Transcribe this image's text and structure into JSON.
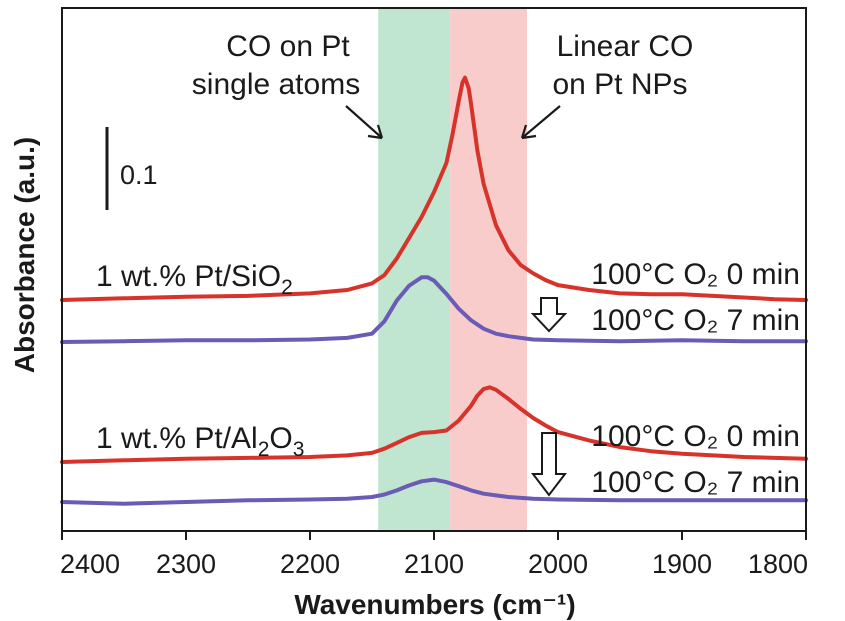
{
  "chart_data": {
    "type": "line",
    "xlabel": "Wavenumbers (cm⁻¹)",
    "ylabel": "Absorbance (a.u.)",
    "xlim": [
      2400,
      1800
    ],
    "x_reversed": true,
    "x_ticks": [
      "2400",
      "2300",
      "2200",
      "2100",
      "2000",
      "1900",
      "1800"
    ],
    "grid": false,
    "scale_bar": {
      "label": "0.1",
      "value": 0.1
    },
    "bands": [
      {
        "label_lines": [
          "CO on Pt",
          "single atoms"
        ],
        "range": [
          2145,
          2087
        ],
        "color": "#b9e2cc"
      },
      {
        "label_lines": [
          "Linear CO",
          "on Pt NPs"
        ],
        "range": [
          2087,
          2025
        ],
        "color": "#f8c6c6"
      }
    ],
    "samples": [
      {
        "label_prefix": "1 wt.% Pt/SiO",
        "label_sub": "2",
        "label_suffix": "",
        "series": [
          {
            "name": "100°C O₂ 0 min",
            "color": "#d6332a",
            "x": [
              2400,
              2350,
              2300,
              2250,
              2200,
              2170,
              2150,
              2140,
              2130,
              2120,
              2110,
              2100,
              2090,
              2085,
              2080,
              2077,
              2075,
              2072,
              2070,
              2065,
              2060,
              2050,
              2040,
              2030,
              2020,
              2010,
              2000,
              1975,
              1950,
              1925,
              1900,
              1875,
              1850,
              1825,
              1800
            ],
            "y": [
              0.0,
              0.002,
              0.004,
              0.005,
              0.008,
              0.012,
              0.02,
              0.03,
              0.05,
              0.075,
              0.1,
              0.13,
              0.165,
              0.2,
              0.24,
              0.262,
              0.268,
              0.255,
              0.235,
              0.18,
              0.14,
              0.09,
              0.06,
              0.042,
              0.032,
              0.024,
              0.018,
              0.012,
              0.008,
              0.007,
              0.007,
              0.005,
              0.003,
              0.001,
              0.0
            ]
          },
          {
            "name": "100°C O₂ 7 min",
            "color": "#6a5bb5",
            "x": [
              2400,
              2350,
              2300,
              2250,
              2200,
              2170,
              2150,
              2140,
              2130,
              2120,
              2110,
              2105,
              2100,
              2090,
              2080,
              2070,
              2060,
              2050,
              2040,
              2030,
              2020,
              2000,
              1950,
              1900,
              1850,
              1800
            ],
            "y": [
              0.0,
              0.001,
              0.002,
              0.002,
              0.003,
              0.005,
              0.01,
              0.025,
              0.05,
              0.068,
              0.078,
              0.078,
              0.074,
              0.058,
              0.04,
              0.026,
              0.016,
              0.01,
              0.007,
              0.005,
              0.003,
              0.002,
              0.001,
              0.002,
              0.001,
              0.001
            ]
          }
        ]
      },
      {
        "label_prefix": "1 wt.% Pt/Al",
        "label_sub": "2",
        "label_suffix": "O",
        "label_sub2": "3",
        "series": [
          {
            "name": "100°C O₂ 0 min",
            "color": "#d6332a",
            "x": [
              2400,
              2350,
              2300,
              2250,
              2200,
              2170,
              2150,
              2140,
              2130,
              2120,
              2110,
              2100,
              2090,
              2080,
              2070,
              2065,
              2060,
              2055,
              2050,
              2040,
              2030,
              2020,
              2010,
              2000,
              1975,
              1950,
              1925,
              1900,
              1875,
              1850,
              1825,
              1800
            ],
            "y": [
              0.0,
              0.002,
              0.004,
              0.005,
              0.006,
              0.008,
              0.011,
              0.016,
              0.023,
              0.03,
              0.035,
              0.036,
              0.038,
              0.05,
              0.068,
              0.08,
              0.088,
              0.09,
              0.087,
              0.076,
              0.064,
              0.053,
              0.044,
              0.036,
              0.026,
              0.018,
              0.013,
              0.01,
              0.008,
              0.006,
              0.005,
              0.004
            ]
          },
          {
            "name": "100°C O₂ 7 min",
            "color": "#6a5bb5",
            "x": [
              2400,
              2350,
              2300,
              2250,
              2200,
              2170,
              2150,
              2140,
              2130,
              2120,
              2110,
              2100,
              2090,
              2080,
              2070,
              2060,
              2050,
              2040,
              2030,
              2020,
              2000,
              1950,
              1900,
              1850,
              1800
            ],
            "y": [
              0.0,
              -0.002,
              0.0,
              0.002,
              0.003,
              0.004,
              0.006,
              0.009,
              0.014,
              0.02,
              0.025,
              0.027,
              0.024,
              0.019,
              0.014,
              0.01,
              0.008,
              0.006,
              0.005,
              0.004,
              0.003,
              0.002,
              0.002,
              0.002,
              0.002
            ]
          }
        ]
      }
    ]
  }
}
